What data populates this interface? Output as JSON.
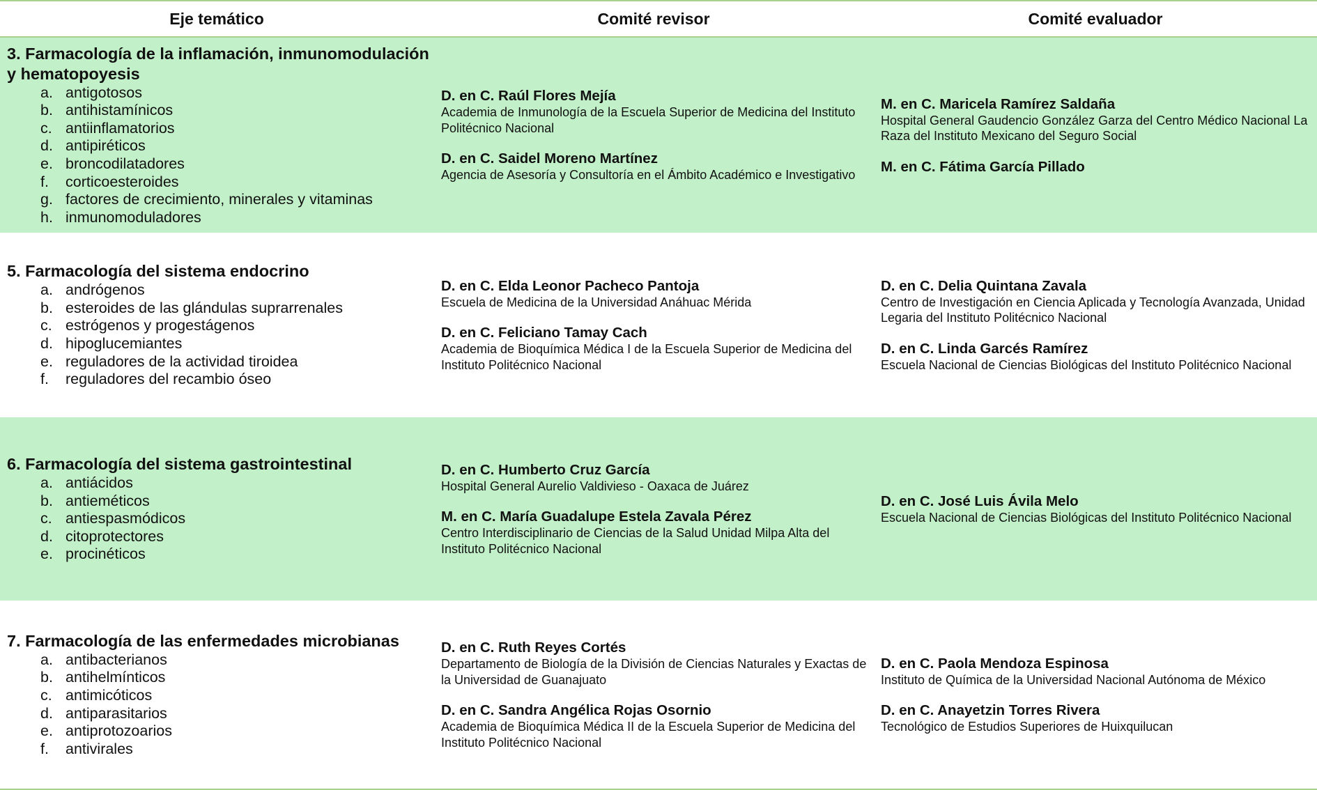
{
  "header": {
    "col1": "Eje temático",
    "col2": "Comité revisor",
    "col3": "Comité evaluador"
  },
  "colors": {
    "row_highlight": "#c2f0c8",
    "rule": "#a9d18e"
  },
  "rows": [
    {
      "title": "3. Farmacología de la inflamación, inmunomodulación y hematopoyesis",
      "items": [
        {
          "letter": "a.",
          "text": "antigotosos"
        },
        {
          "letter": "b.",
          "text": "antihistamínicos"
        },
        {
          "letter": "c.",
          "text": "antiinflamatorios"
        },
        {
          "letter": "d.",
          "text": "antipiréticos"
        },
        {
          "letter": "e.",
          "text": "broncodilatadores"
        },
        {
          "letter": "f.",
          "text": "corticoesteroides"
        },
        {
          "letter": "g.",
          "text": "factores de crecimiento, minerales y vitaminas"
        },
        {
          "letter": "h.",
          "text": "inmunomoduladores"
        }
      ],
      "revisores": [
        {
          "name": "D. en C. Raúl Flores Mejía",
          "affiliation": "Academia de Inmunología de la Escuela Superior de Medicina del Instituto Politécnico Nacional"
        },
        {
          "name": "D. en C.  Saidel Moreno Martínez",
          "affiliation": "Agencia de Asesoría y Consultoría en el Ámbito Académico e Investigativo"
        }
      ],
      "evaluadores": [
        {
          "name": "M. en C. Maricela Ramírez Saldaña",
          "affiliation": "Hospital General Gaudencio González Garza del Centro Médico Nacional La Raza del Instituto Mexicano del Seguro Social"
        },
        {
          "name": "M. en C. Fátima García Pillado",
          "affiliation": ""
        }
      ]
    },
    {
      "title": "5. Farmacología del sistema endocrino",
      "items": [
        {
          "letter": "a.",
          "text": "andrógenos"
        },
        {
          "letter": "b.",
          "text": "esteroides de las glándulas suprarrenales"
        },
        {
          "letter": "c.",
          "text": "estrógenos y progestágenos"
        },
        {
          "letter": "d.",
          "text": "hipoglucemiantes"
        },
        {
          "letter": "e.",
          "text": "reguladores de la actividad tiroidea"
        },
        {
          "letter": "f.",
          "text": "reguladores del recambio óseo"
        }
      ],
      "revisores": [
        {
          "name": "D. en C. Elda Leonor Pacheco Pantoja",
          "affiliation": "Escuela de Medicina de la Universidad Anáhuac Mérida"
        },
        {
          "name": "D. en C. Feliciano Tamay Cach",
          "affiliation": "Academia de Bioquímica Médica I de la Escuela Superior de Medicina del Instituto Politécnico Nacional"
        }
      ],
      "evaluadores": [
        {
          "name": "D. en C. Delia Quintana Zavala",
          "affiliation": "Centro de Investigación en Ciencia Aplicada y Tecnología Avanzada, Unidad Legaria del Instituto Politécnico Nacional"
        },
        {
          "name": "D. en C. Linda Garcés Ramírez",
          "affiliation": "Escuela Nacional de Ciencias Biológicas del Instituto Politécnico Nacional"
        }
      ]
    },
    {
      "title": "6. Farmacología del sistema gastrointestinal",
      "items": [
        {
          "letter": "a.",
          "text": "antiácidos"
        },
        {
          "letter": "b.",
          "text": "antieméticos"
        },
        {
          "letter": "c.",
          "text": "antiespasmódicos"
        },
        {
          "letter": "d.",
          "text": "citoprotectores"
        },
        {
          "letter": "e.",
          "text": "procinéticos"
        }
      ],
      "revisores": [
        {
          "name": "D. en C. Humberto Cruz García",
          "affiliation": "Hospital General Aurelio Valdivieso - Oaxaca de Juárez"
        },
        {
          "name": "M. en C. María Guadalupe Estela Zavala Pérez",
          "affiliation": "Centro Interdisciplinario de Ciencias de la Salud Unidad Milpa Alta del Instituto Politécnico Nacional"
        }
      ],
      "evaluadores": [
        {
          "name": "D. en C. José Luis Ávila Melo",
          "affiliation": "Escuela Nacional de Ciencias Biológicas del Instituto Politécnico Nacional"
        }
      ]
    },
    {
      "title": "7. Farmacología de las enfermedades microbianas",
      "items": [
        {
          "letter": "a.",
          "text": "antibacterianos"
        },
        {
          "letter": "b.",
          "text": "antihelmínticos"
        },
        {
          "letter": "c.",
          "text": "antimicóticos"
        },
        {
          "letter": "d.",
          "text": "antiparasitarios"
        },
        {
          "letter": "e.",
          "text": "antiprotozoarios"
        },
        {
          "letter": "f.",
          "text": "antivirales"
        }
      ],
      "revisores": [
        {
          "name": "D. en C. Ruth Reyes Cortés",
          "affiliation": "Departamento de Biología de la División de Ciencias Naturales y Exactas de la Universidad de Guanajuato"
        },
        {
          "name": "D. en C.  Sandra Angélica Rojas Osornio",
          "affiliation": "Academia de Bioquímica Médica II de la Escuela Superior de Medicina del Instituto Politécnico Nacional"
        }
      ],
      "evaluadores": [
        {
          "name": "D. en C. Paola Mendoza Espinosa",
          "affiliation": "Instituto de Química de la Universidad Nacional Autónoma de México"
        },
        {
          "name": "D. en C. Anayetzin Torres Rivera",
          "affiliation": "Tecnológico de Estudios Superiores de Huixquilucan"
        }
      ]
    }
  ]
}
